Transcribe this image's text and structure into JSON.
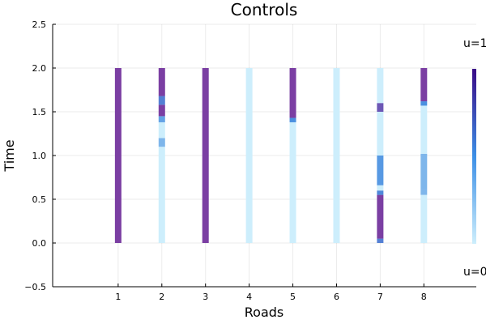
{
  "chart_data": {
    "type": "heatmap",
    "title": "Controls",
    "xlabel": "Roads",
    "ylabel": "Time",
    "xlim": [
      -0.5,
      9.2
    ],
    "ylim": [
      -0.5,
      2.5
    ],
    "x_ticks": [
      "1",
      "2",
      "3",
      "4",
      "5",
      "6",
      "7",
      "8"
    ],
    "y_ticks": [
      "−0.5",
      "0.0",
      "0.5",
      "1.0",
      "1.5",
      "2.0",
      "2.5"
    ],
    "y_tick_values": [
      -0.5,
      0.0,
      0.5,
      1.0,
      1.5,
      2.0,
      2.5
    ],
    "grid": true,
    "colorbar_labels": {
      "top": "u=1",
      "bottom": "u=0"
    },
    "colors": {
      "high": "#7b3fa3",
      "mid": "#4a90e0",
      "low": "#cdeefc"
    },
    "roads": [
      {
        "road": 1,
        "segments": [
          {
            "from": 0.0,
            "to": 2.0,
            "u": 1
          }
        ]
      },
      {
        "road": 2,
        "segments": [
          {
            "from": 0.0,
            "to": 1.1,
            "u": 0
          },
          {
            "from": 1.1,
            "to": 1.2,
            "u": 0.3
          },
          {
            "from": 1.2,
            "to": 1.38,
            "u": 0
          },
          {
            "from": 1.38,
            "to": 1.45,
            "u": 0.4
          },
          {
            "from": 1.45,
            "to": 1.58,
            "u": 1
          },
          {
            "from": 1.58,
            "to": 1.68,
            "u": 0.6
          },
          {
            "from": 1.68,
            "to": 2.0,
            "u": 1
          }
        ]
      },
      {
        "road": 3,
        "segments": [
          {
            "from": 0.0,
            "to": 2.0,
            "u": 1
          }
        ]
      },
      {
        "road": 4,
        "segments": [
          {
            "from": 0.0,
            "to": 2.0,
            "u": 0
          }
        ]
      },
      {
        "road": 5,
        "segments": [
          {
            "from": 0.0,
            "to": 1.38,
            "u": 0
          },
          {
            "from": 1.38,
            "to": 1.43,
            "u": 0.5
          },
          {
            "from": 1.43,
            "to": 2.0,
            "u": 1
          }
        ]
      },
      {
        "road": 6,
        "segments": [
          {
            "from": 0.0,
            "to": 2.0,
            "u": 0
          }
        ]
      },
      {
        "road": 7,
        "segments": [
          {
            "from": 0.0,
            "to": 0.05,
            "u": 0.6
          },
          {
            "from": 0.05,
            "to": 0.55,
            "u": 1
          },
          {
            "from": 0.55,
            "to": 0.6,
            "u": 0.55
          },
          {
            "from": 0.6,
            "to": 0.66,
            "u": 0
          },
          {
            "from": 0.66,
            "to": 1.0,
            "u": 0.45
          },
          {
            "from": 1.0,
            "to": 1.5,
            "u": 0
          },
          {
            "from": 1.5,
            "to": 1.6,
            "u": 0.85
          },
          {
            "from": 1.6,
            "to": 2.0,
            "u": 0
          }
        ]
      },
      {
        "road": 8,
        "segments": [
          {
            "from": 0.0,
            "to": 0.55,
            "u": 0
          },
          {
            "from": 0.55,
            "to": 0.62,
            "u": 0.3
          },
          {
            "from": 0.62,
            "to": 1.02,
            "u": 0.3
          },
          {
            "from": 1.02,
            "to": 1.57,
            "u": 0
          },
          {
            "from": 1.57,
            "to": 1.62,
            "u": 0.5
          },
          {
            "from": 1.62,
            "to": 2.0,
            "u": 1
          }
        ]
      }
    ]
  }
}
